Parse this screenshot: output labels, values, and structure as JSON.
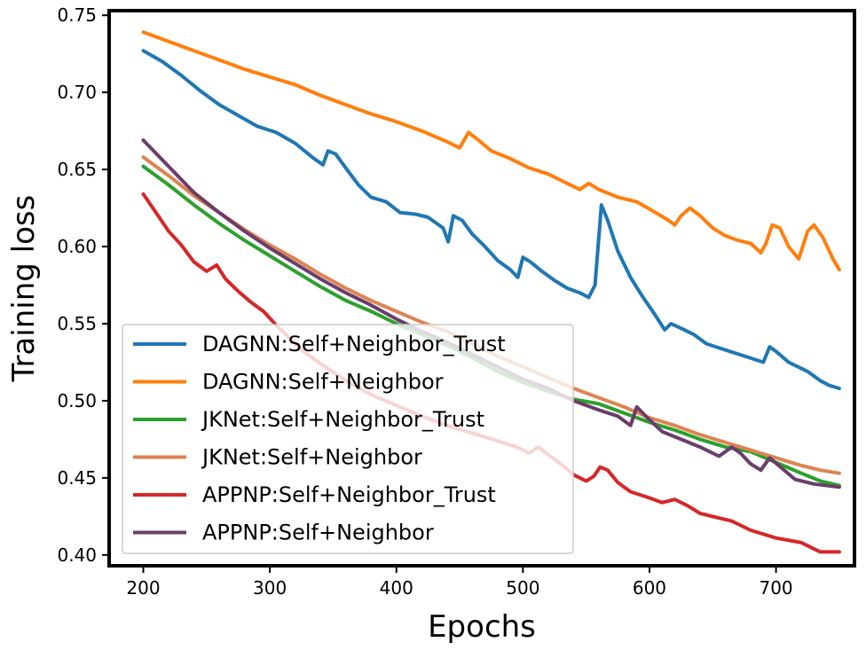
{
  "chart_data": {
    "type": "line",
    "xlabel": "Epochs",
    "ylabel": "Training loss",
    "xlim": [
      173,
      762
    ],
    "ylim": [
      0.393,
      0.753
    ],
    "xticks": [
      200,
      300,
      400,
      500,
      600,
      700
    ],
    "yticks": [
      0.4,
      0.45,
      0.5,
      0.55,
      0.6,
      0.65,
      0.7,
      0.75
    ],
    "ytick_labels": [
      "0.40",
      "0.45",
      "0.50",
      "0.55",
      "0.60",
      "0.65",
      "0.70",
      "0.75"
    ],
    "grid": false,
    "legend_position": "lower-left",
    "series": [
      {
        "name": "DAGNN:Self+Neighbor_Trust",
        "color": "#1f77b4",
        "points": [
          [
            200,
            0.727
          ],
          [
            215,
            0.72
          ],
          [
            230,
            0.711
          ],
          [
            245,
            0.701
          ],
          [
            260,
            0.692
          ],
          [
            275,
            0.685
          ],
          [
            290,
            0.678
          ],
          [
            305,
            0.674
          ],
          [
            320,
            0.667
          ],
          [
            335,
            0.657
          ],
          [
            342,
            0.653
          ],
          [
            346,
            0.662
          ],
          [
            352,
            0.66
          ],
          [
            360,
            0.651
          ],
          [
            370,
            0.64
          ],
          [
            380,
            0.632
          ],
          [
            392,
            0.629
          ],
          [
            403,
            0.622
          ],
          [
            415,
            0.621
          ],
          [
            425,
            0.619
          ],
          [
            437,
            0.612
          ],
          [
            441,
            0.603
          ],
          [
            445,
            0.62
          ],
          [
            452,
            0.617
          ],
          [
            460,
            0.608
          ],
          [
            470,
            0.6
          ],
          [
            480,
            0.591
          ],
          [
            490,
            0.585
          ],
          [
            496,
            0.58
          ],
          [
            500,
            0.593
          ],
          [
            506,
            0.59
          ],
          [
            515,
            0.584
          ],
          [
            525,
            0.578
          ],
          [
            535,
            0.573
          ],
          [
            545,
            0.57
          ],
          [
            552,
            0.567
          ],
          [
            557,
            0.575
          ],
          [
            562,
            0.627
          ],
          [
            567,
            0.617
          ],
          [
            575,
            0.597
          ],
          [
            585,
            0.58
          ],
          [
            595,
            0.567
          ],
          [
            605,
            0.555
          ],
          [
            612,
            0.546
          ],
          [
            617,
            0.55
          ],
          [
            625,
            0.547
          ],
          [
            635,
            0.543
          ],
          [
            645,
            0.537
          ],
          [
            660,
            0.533
          ],
          [
            675,
            0.529
          ],
          [
            690,
            0.525
          ],
          [
            695,
            0.535
          ],
          [
            700,
            0.532
          ],
          [
            710,
            0.525
          ],
          [
            725,
            0.519
          ],
          [
            735,
            0.513
          ],
          [
            742,
            0.51
          ],
          [
            750,
            0.508
          ]
        ]
      },
      {
        "name": "DAGNN:Self+Neighbor",
        "color": "#ff7f0e",
        "points": [
          [
            200,
            0.739
          ],
          [
            220,
            0.733
          ],
          [
            240,
            0.727
          ],
          [
            260,
            0.721
          ],
          [
            280,
            0.715
          ],
          [
            300,
            0.71
          ],
          [
            320,
            0.705
          ],
          [
            340,
            0.698
          ],
          [
            360,
            0.692
          ],
          [
            380,
            0.686
          ],
          [
            400,
            0.681
          ],
          [
            420,
            0.675
          ],
          [
            440,
            0.668
          ],
          [
            450,
            0.664
          ],
          [
            457,
            0.674
          ],
          [
            465,
            0.669
          ],
          [
            475,
            0.662
          ],
          [
            490,
            0.657
          ],
          [
            505,
            0.651
          ],
          [
            520,
            0.647
          ],
          [
            535,
            0.641
          ],
          [
            545,
            0.637
          ],
          [
            552,
            0.641
          ],
          [
            560,
            0.637
          ],
          [
            575,
            0.632
          ],
          [
            590,
            0.629
          ],
          [
            605,
            0.622
          ],
          [
            615,
            0.617
          ],
          [
            620,
            0.614
          ],
          [
            625,
            0.62
          ],
          [
            632,
            0.625
          ],
          [
            640,
            0.62
          ],
          [
            650,
            0.612
          ],
          [
            660,
            0.607
          ],
          [
            670,
            0.604
          ],
          [
            680,
            0.602
          ],
          [
            688,
            0.596
          ],
          [
            692,
            0.602
          ],
          [
            697,
            0.614
          ],
          [
            703,
            0.612
          ],
          [
            710,
            0.6
          ],
          [
            718,
            0.592
          ],
          [
            725,
            0.61
          ],
          [
            730,
            0.614
          ],
          [
            737,
            0.606
          ],
          [
            745,
            0.592
          ],
          [
            750,
            0.585
          ]
        ]
      },
      {
        "name": "JKNet:Self+Neighbor_Trust",
        "color": "#2ca02c",
        "points": [
          [
            200,
            0.652
          ],
          [
            220,
            0.64
          ],
          [
            240,
            0.627
          ],
          [
            260,
            0.615
          ],
          [
            280,
            0.604
          ],
          [
            300,
            0.594
          ],
          [
            320,
            0.584
          ],
          [
            340,
            0.574
          ],
          [
            360,
            0.565
          ],
          [
            380,
            0.558
          ],
          [
            400,
            0.55
          ],
          [
            420,
            0.543
          ],
          [
            440,
            0.536
          ],
          [
            460,
            0.528
          ],
          [
            480,
            0.519
          ],
          [
            500,
            0.512
          ],
          [
            520,
            0.506
          ],
          [
            540,
            0.501
          ],
          [
            560,
            0.498
          ],
          [
            580,
            0.492
          ],
          [
            600,
            0.486
          ],
          [
            620,
            0.481
          ],
          [
            640,
            0.475
          ],
          [
            660,
            0.47
          ],
          [
            680,
            0.467
          ],
          [
            700,
            0.46
          ],
          [
            720,
            0.453
          ],
          [
            735,
            0.448
          ],
          [
            750,
            0.445
          ]
        ]
      },
      {
        "name": "JKNet:Self+Neighbor",
        "color": "#dd8452",
        "points": [
          [
            200,
            0.658
          ],
          [
            220,
            0.646
          ],
          [
            240,
            0.633
          ],
          [
            260,
            0.622
          ],
          [
            280,
            0.611
          ],
          [
            300,
            0.601
          ],
          [
            320,
            0.592
          ],
          [
            340,
            0.582
          ],
          [
            360,
            0.573
          ],
          [
            380,
            0.565
          ],
          [
            400,
            0.558
          ],
          [
            420,
            0.551
          ],
          [
            440,
            0.545
          ],
          [
            460,
            0.537
          ],
          [
            480,
            0.529
          ],
          [
            500,
            0.522
          ],
          [
            520,
            0.515
          ],
          [
            540,
            0.508
          ],
          [
            560,
            0.502
          ],
          [
            580,
            0.496
          ],
          [
            600,
            0.489
          ],
          [
            620,
            0.484
          ],
          [
            640,
            0.478
          ],
          [
            660,
            0.473
          ],
          [
            680,
            0.468
          ],
          [
            700,
            0.463
          ],
          [
            720,
            0.458
          ],
          [
            735,
            0.455
          ],
          [
            750,
            0.453
          ]
        ]
      },
      {
        "name": "APPNP:Self+Neighbor_Trust",
        "color": "#d62728",
        "points": [
          [
            200,
            0.634
          ],
          [
            210,
            0.622
          ],
          [
            220,
            0.61
          ],
          [
            230,
            0.601
          ],
          [
            240,
            0.59
          ],
          [
            250,
            0.584
          ],
          [
            258,
            0.588
          ],
          [
            265,
            0.579
          ],
          [
            275,
            0.571
          ],
          [
            285,
            0.564
          ],
          [
            295,
            0.558
          ],
          [
            305,
            0.549
          ],
          [
            315,
            0.541
          ],
          [
            325,
            0.533
          ],
          [
            340,
            0.524
          ],
          [
            360,
            0.513
          ],
          [
            380,
            0.504
          ],
          [
            400,
            0.497
          ],
          [
            420,
            0.49
          ],
          [
            440,
            0.484
          ],
          [
            460,
            0.479
          ],
          [
            480,
            0.474
          ],
          [
            495,
            0.47
          ],
          [
            505,
            0.466
          ],
          [
            512,
            0.47
          ],
          [
            520,
            0.465
          ],
          [
            530,
            0.459
          ],
          [
            540,
            0.452
          ],
          [
            550,
            0.448
          ],
          [
            556,
            0.451
          ],
          [
            561,
            0.457
          ],
          [
            567,
            0.455
          ],
          [
            575,
            0.447
          ],
          [
            585,
            0.441
          ],
          [
            600,
            0.437
          ],
          [
            610,
            0.434
          ],
          [
            620,
            0.436
          ],
          [
            630,
            0.432
          ],
          [
            640,
            0.427
          ],
          [
            650,
            0.425
          ],
          [
            665,
            0.422
          ],
          [
            680,
            0.416
          ],
          [
            700,
            0.411
          ],
          [
            720,
            0.408
          ],
          [
            735,
            0.402
          ],
          [
            750,
            0.402
          ]
        ]
      },
      {
        "name": "APPNP:Self+Neighbor",
        "color": "#6a3d6a",
        "points": [
          [
            200,
            0.669
          ],
          [
            220,
            0.652
          ],
          [
            240,
            0.635
          ],
          [
            260,
            0.622
          ],
          [
            280,
            0.61
          ],
          [
            300,
            0.599
          ],
          [
            320,
            0.589
          ],
          [
            340,
            0.579
          ],
          [
            360,
            0.57
          ],
          [
            380,
            0.562
          ],
          [
            400,
            0.553
          ],
          [
            420,
            0.545
          ],
          [
            440,
            0.538
          ],
          [
            460,
            0.53
          ],
          [
            480,
            0.522
          ],
          [
            500,
            0.514
          ],
          [
            520,
            0.508
          ],
          [
            540,
            0.5
          ],
          [
            560,
            0.494
          ],
          [
            575,
            0.49
          ],
          [
            585,
            0.484
          ],
          [
            590,
            0.496
          ],
          [
            597,
            0.49
          ],
          [
            610,
            0.48
          ],
          [
            625,
            0.475
          ],
          [
            640,
            0.47
          ],
          [
            655,
            0.464
          ],
          [
            665,
            0.47
          ],
          [
            672,
            0.466
          ],
          [
            680,
            0.459
          ],
          [
            688,
            0.455
          ],
          [
            695,
            0.463
          ],
          [
            705,
            0.456
          ],
          [
            715,
            0.449
          ],
          [
            730,
            0.446
          ],
          [
            750,
            0.444
          ]
        ]
      }
    ]
  }
}
